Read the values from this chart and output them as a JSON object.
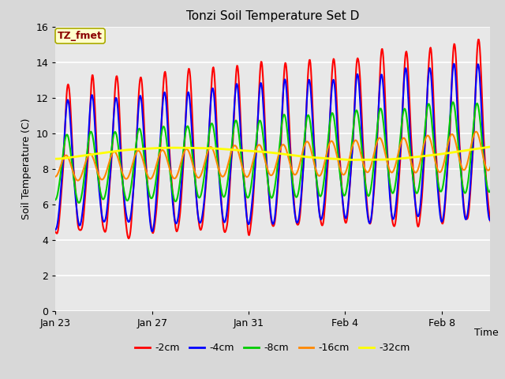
{
  "title": "Tonzi Soil Temperature Set D",
  "xlabel": "Time",
  "ylabel": "Soil Temperature (C)",
  "ylim": [
    0,
    16
  ],
  "yticks": [
    0,
    2,
    4,
    6,
    8,
    10,
    12,
    14,
    16
  ],
  "xtick_labels": [
    "Jan 23",
    "Jan 27",
    "Jan 31",
    "Feb 4",
    "Feb 8"
  ],
  "bg_color": "#d8d8d8",
  "plot_bg": "#e8e8e8",
  "legend_label": "TZ_fmet",
  "legend_text_color": "#8b0000",
  "legend_bg": "#ffffcc",
  "legend_edge": "#aaaa00",
  "series_colors": [
    "#ff0000",
    "#0000ff",
    "#00cc00",
    "#ff8800",
    "#ffff00"
  ],
  "series_labels": [
    "-2cm",
    "-4cm",
    "-8cm",
    "-16cm",
    "-32cm"
  ],
  "series_linewidths": [
    1.5,
    1.5,
    1.5,
    1.5,
    2.0
  ]
}
